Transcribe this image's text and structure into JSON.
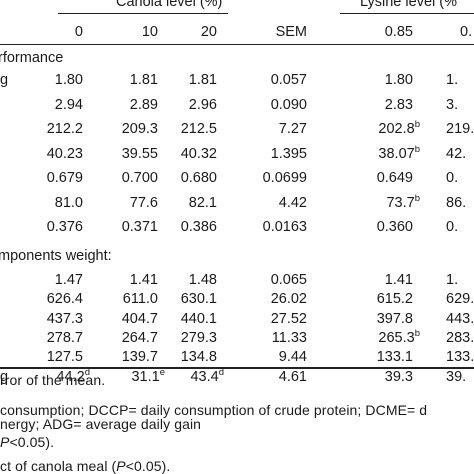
{
  "header": {
    "canola_level": "Canola level (%)",
    "lysine_level": "Lysine level (%",
    "cols": [
      "0",
      "10",
      "20",
      "SEM",
      "0.85",
      "0."
    ]
  },
  "sections": {
    "performance": "rformance",
    "components": "mponents weight:"
  },
  "rows": [
    {
      "label": "g",
      "c0": "1.80",
      "c10": "1.81",
      "c20": "1.81",
      "sem": "0.057",
      "l85": "1.80",
      "l85_sup": "",
      "l9": "1."
    },
    {
      "label": "",
      "c0": "2.94",
      "c10": "2.89",
      "c20": "2.96",
      "sem": "0.090",
      "l85": "2.83",
      "l85_sup": "",
      "l9": "3."
    },
    {
      "label": "",
      "c0": "212.2",
      "c10": "209.3",
      "c20": "212.5",
      "sem": "7.27",
      "l85": "202.8",
      "l85_sup": "b",
      "l9": "219."
    },
    {
      "label": "",
      "c0": "40.23",
      "c10": "39.55",
      "c20": "40.32",
      "sem": "1.395",
      "l85": "38.07",
      "l85_sup": "b",
      "l9": "42."
    },
    {
      "label": "",
      "c0": "0.679",
      "c10": "0.700",
      "c20": "0.680",
      "sem": "0.0699",
      "l85": "0.649",
      "l85_sup": "",
      "l9": "0."
    },
    {
      "label": "",
      "c0": "81.0",
      "c10": "77.6",
      "c20": "82.1",
      "sem": "4.42",
      "l85": "73.7",
      "l85_sup": "b",
      "l9": "86."
    },
    {
      "label": "",
      "c0": "0.376",
      "c10": "0.371",
      "c20": "0.386",
      "sem": "0.0163",
      "l85": "0.360",
      "l85_sup": "",
      "l9": "0."
    }
  ],
  "rows2": [
    {
      "label": "",
      "c0": "1.47",
      "c10": "1.41",
      "c20": "1.48",
      "sem": "0.065",
      "l85": "1.41",
      "l85_sup": "",
      "l9": "1."
    },
    {
      "label": "",
      "c0": "626.4",
      "c10": "611.0",
      "c20": "630.1",
      "sem": "26.02",
      "l85": "615.2",
      "l85_sup": "",
      "l9": "629."
    },
    {
      "label": "",
      "c0": "437.3",
      "c10": "404.7",
      "c20": "440.1",
      "sem": "27.52",
      "l85": "397.8",
      "l85_sup": "",
      "l9": "443."
    },
    {
      "label": "",
      "c0": "278.7",
      "c10": "264.7",
      "c20": "279.3",
      "sem": "11.33",
      "l85": "265.3",
      "l85_sup": "b",
      "l9": "283."
    },
    {
      "label": "",
      "c0": "127.5",
      "c10": "139.7",
      "c20": "134.8",
      "sem": "9.44",
      "l85": "133.1",
      "l85_sup": "",
      "l9": "133."
    },
    {
      "label": "g",
      "c0": "44.2",
      "c0_sup": "d",
      "c10": "31.1",
      "c10_sup": "e",
      "c20": "43.4",
      "c20_sup": "d",
      "sem": "4.61",
      "l85": "39.3",
      "l85_sup": "",
      "l9": "39."
    }
  ],
  "notes": [
    "rror of the mean.",
    "consumption; DCCP= daily consumption of crude protein; DCME= d",
    "nergy; ADG= average daily gain",
    "P<0.05).",
    "ct of  canola meal (P<0.05)."
  ]
}
